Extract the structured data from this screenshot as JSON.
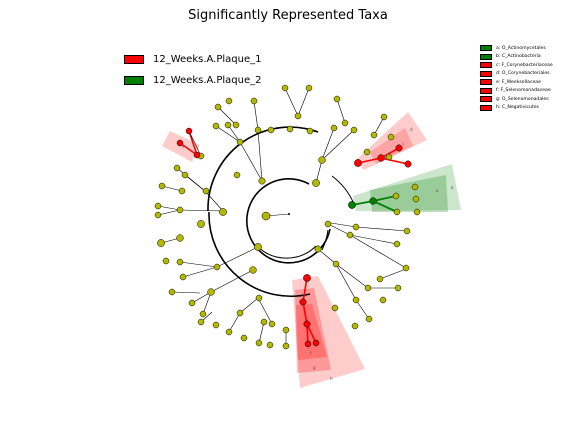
{
  "title": "Significantly Represented Taxa",
  "colors": {
    "node": "#b5b800",
    "up_plaque_1": "#ff0000",
    "up_plaque_2": "#008000"
  },
  "legend_groups": [
    {
      "label": "12_Weeks.A.Plaque_1",
      "color": "#ff0000"
    },
    {
      "label": "12_Weeks.A.Plaque_2",
      "color": "#008000"
    }
  ],
  "legend_taxa": [
    {
      "label": "a: O_Actinomycetales",
      "color": "#008000"
    },
    {
      "label": "b: C_Actinobacteria",
      "color": "#008000"
    },
    {
      "label": "c: F_Corynebacteriaceae",
      "color": "#ff0000"
    },
    {
      "label": "d: O_Corynebacteriales",
      "color": "#ff0000"
    },
    {
      "label": "e: F_Weeksellaceae",
      "color": "#ff0000"
    },
    {
      "label": "f: F_Selenomonadaceae",
      "color": "#ff0000"
    },
    {
      "label": "g: O_Selenomonadales",
      "color": "#ff0000"
    },
    {
      "label": "h: C_Negativicutes",
      "color": "#ff0000"
    }
  ],
  "highlight_letters": [
    "a",
    "b",
    "c",
    "d",
    "e",
    "f",
    "g",
    "h"
  ]
}
